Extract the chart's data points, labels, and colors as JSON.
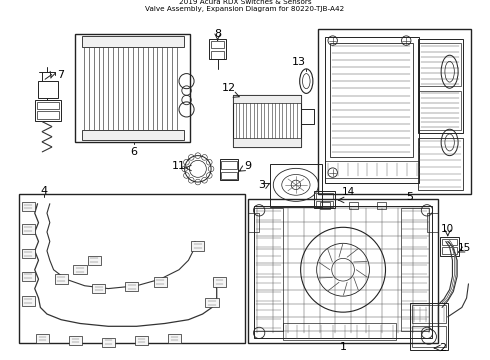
{
  "title": "2019 Acura RDX Switches & Sensors\nValve Assembly, Expansion Diagram for 80220-TJB-A42",
  "background_color": "#ffffff",
  "border_color": "#000000",
  "text_color": "#000000",
  "figsize": [
    4.9,
    3.6
  ],
  "dpi": 100,
  "line_color": "#222222",
  "part_color": "#333333"
}
